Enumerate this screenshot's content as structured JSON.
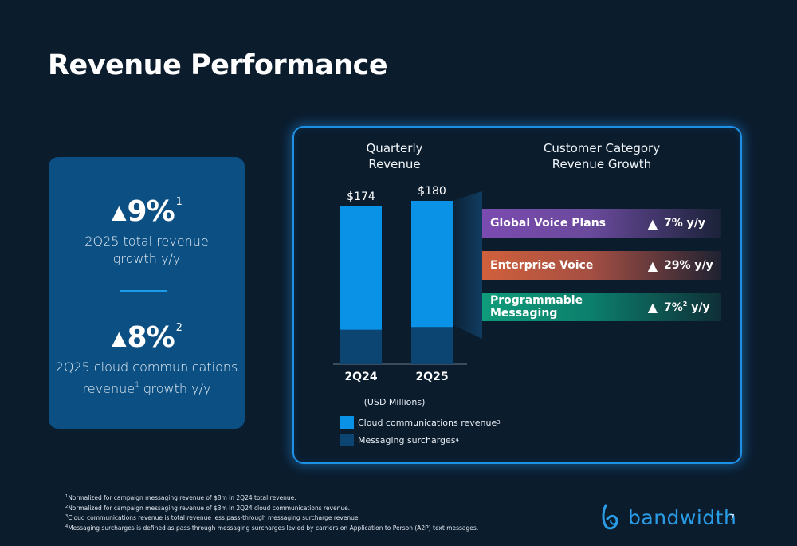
{
  "title": "Revenue Performance",
  "kpis": [
    {
      "stat": "9%",
      "sup": "1",
      "desc_line1": "2Q25 total revenue",
      "desc_line2": "growth y/y"
    },
    {
      "stat": "8%",
      "sup": "2",
      "desc_line1": "2Q25 cloud communications",
      "desc_line2a": "revenue",
      "desc_sup": "1",
      "desc_line2b": " growth y/y"
    }
  ],
  "chart_data": {
    "type": "bar",
    "title_line1": "Quarterly",
    "title_line2": "Revenue",
    "categories": [
      "2Q24",
      "2Q25"
    ],
    "totals": [
      174,
      180
    ],
    "total_labels": [
      "$174",
      "$180"
    ],
    "series": [
      {
        "name": "Cloud communications revenue",
        "values": [
          136,
          139
        ]
      },
      {
        "name": "Messaging surcharges",
        "values": [
          38,
          41
        ]
      }
    ],
    "note": "(USD Millions)",
    "ylim": [
      0,
      180
    ]
  },
  "colors": {
    "cloud": "#0a93e6",
    "surcharges": "#0c4572",
    "accent": "#1e90e6"
  },
  "legend": {
    "cloud_label": "Cloud communications revenue",
    "cloud_sup": "3",
    "surcharge_label": "Messaging surcharges",
    "surcharge_sup": "4"
  },
  "category_growth": {
    "title_line1": "Customer Category",
    "title_line2": "Revenue Growth",
    "items": [
      {
        "name": "Global Voice Plans",
        "value": "7% y/y"
      },
      {
        "name": "Enterprise Voice",
        "value": "29% y/y"
      },
      {
        "name": "Programmable Messaging",
        "value_a": "7%",
        "value_sup": "2",
        "value_b": " y/y"
      }
    ]
  },
  "footnotes": [
    {
      "n": "1",
      "text": "Normalized for campaign messaging revenue of $8m in 2Q24 total revenue."
    },
    {
      "n": "2",
      "text": "Normalized for campaign messaging revenue of $3m in 2Q24 cloud communications revenue."
    },
    {
      "n": "3",
      "text": "Cloud communications revenue is total revenue less pass-through messaging surcharge revenue."
    },
    {
      "n": "4",
      "text": "Messaging surcharges is defined as pass-through messaging surcharges levied by carriers on Application to Person (A2P) text messages."
    }
  ],
  "brand": "bandwidth",
  "page_number": "7"
}
